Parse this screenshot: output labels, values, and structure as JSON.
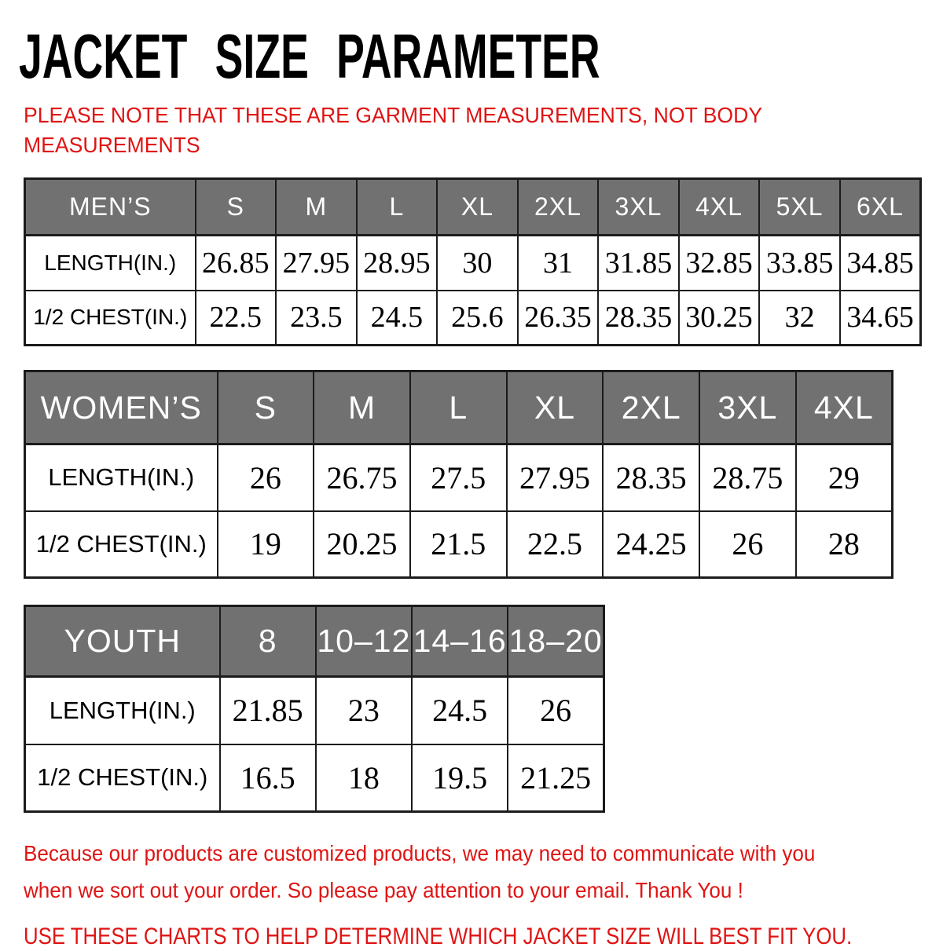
{
  "page": {
    "title": "JACKET SIZE PARAMETER",
    "note_line1": "PLEASE NOTE THAT THESE ARE GARMENT MEASUREMENTS, NOT BODY",
    "note_line2": "MEASUREMENTS",
    "footer_line1": "Because our products are customized products, we may need to communicate with you",
    "footer_line2": "when we sort out your order. So please pay attention to your email. Thank You !",
    "footer_line3": "USE THESE CHARTS TO HELP DETERMINE WHICH JACKET SIZE WILL BEST FIT YOU."
  },
  "colors": {
    "accent_red": "#e01414",
    "header_gray": "#717171",
    "header_text": "#ffffff",
    "table_border": "#1b1b1b",
    "text_black": "#000000",
    "background": "#ffffff"
  },
  "tables": [
    {
      "name": "mens",
      "header": [
        "MEN’S",
        "S",
        "M",
        "L",
        "XL",
        "2XL",
        "3XL",
        "4XL",
        "5XL",
        "6XL"
      ],
      "rows": [
        {
          "label": "LENGTH(IN.)",
          "values": [
            "26.85",
            "27.95",
            "28.95",
            "30",
            "31",
            "31.85",
            "32.85",
            "33.85",
            "34.85"
          ]
        },
        {
          "label": "1/2 CHEST(IN.)",
          "values": [
            "22.5",
            "23.5",
            "24.5",
            "25.6",
            "26.35",
            "28.35",
            "30.25",
            "32",
            "34.65"
          ]
        }
      ]
    },
    {
      "name": "womens",
      "header": [
        "WOMEN’S",
        "S",
        "M",
        "L",
        "XL",
        "2XL",
        "3XL",
        "4XL"
      ],
      "rows": [
        {
          "label": "LENGTH(IN.)",
          "values": [
            "26",
            "26.75",
            "27.5",
            "27.95",
            "28.35",
            "28.75",
            "29"
          ]
        },
        {
          "label": "1/2 CHEST(IN.)",
          "values": [
            "19",
            "20.25",
            "21.5",
            "22.5",
            "24.25",
            "26",
            "28"
          ]
        }
      ]
    },
    {
      "name": "youth",
      "header": [
        "YOUTH",
        "8",
        "10–12",
        "14–16",
        "18–20"
      ],
      "rows": [
        {
          "label": "LENGTH(IN.)",
          "values": [
            "21.85",
            "23",
            "24.5",
            "26"
          ]
        },
        {
          "label": "1/2 CHEST(IN.)",
          "values": [
            "16.5",
            "18",
            "19.5",
            "21.25"
          ]
        }
      ]
    }
  ]
}
